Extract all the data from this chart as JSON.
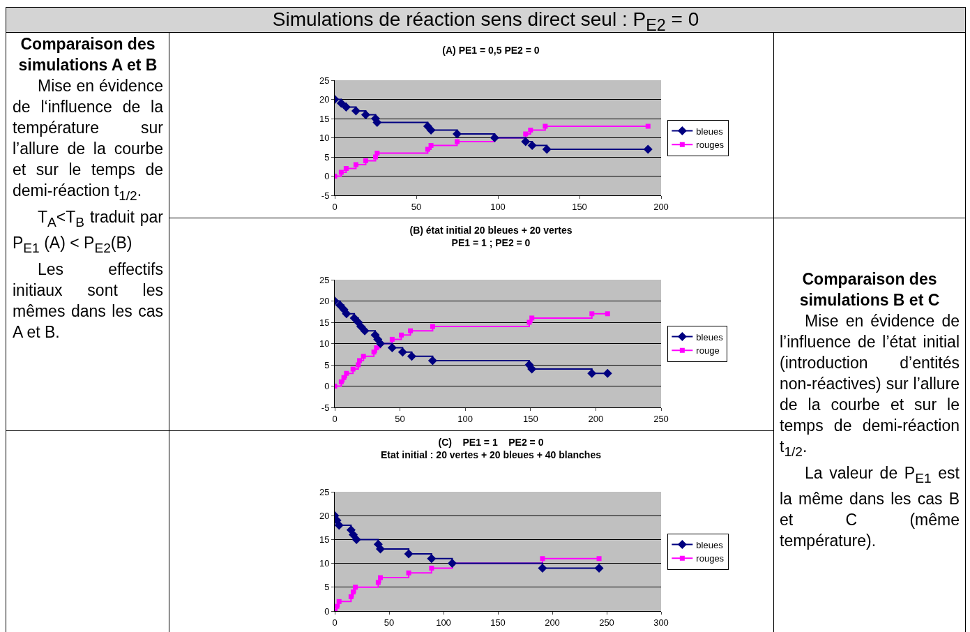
{
  "chart_data": [
    {
      "type": "other",
      "title": "Simulations de réaction sens direct seul : P$_{E2}$ = 0"
    },
    {
      "type": "other",
      "title": "Comparaison des simulations A et B",
      "annotations": [
        "Mise en évidence de l‘influence de la température sur l’allure de la courbe et sur le temps de demi-réaction t$_{1/2}$.",
        "T$_{A}$<T$_{B}$ traduit par P$_{E1}$ (A) < P$_{E2}$(B)",
        "Les effectifs initiaux sont les mêmes dans les cas A et B."
      ]
    },
    {
      "type": "step",
      "title": "(A) PE1 = 0,5 PE2 = 0",
      "xlim": [
        0,
        200
      ],
      "xticks": [
        0,
        50,
        100,
        150,
        200
      ],
      "ylim": [
        -5,
        25
      ],
      "yticks": [
        -5,
        0,
        5,
        10,
        15,
        20,
        25
      ],
      "grid": "y",
      "legend": "right",
      "series": [
        {
          "name": "bleues",
          "color": "#000080",
          "marker": "diamond",
          "x": [
            0,
            4,
            7,
            13,
            19,
            25,
            26,
            57,
            59,
            75,
            98,
            117,
            121,
            130,
            192
          ],
          "values": [
            20,
            19,
            18,
            17,
            16,
            15,
            14,
            13,
            12,
            11,
            10,
            9,
            8,
            7,
            7
          ]
        },
        {
          "name": "rouges",
          "color": "#ff00ff",
          "marker": "square",
          "x": [
            0,
            4,
            7,
            13,
            19,
            25,
            26,
            57,
            59,
            75,
            98,
            117,
            120,
            129,
            192
          ],
          "values": [
            0,
            1,
            2,
            3,
            4,
            5,
            6,
            7,
            8,
            9,
            10,
            11,
            12,
            13,
            13
          ]
        }
      ]
    },
    {
      "type": "step",
      "title": "(B) état initial 20 bleues + 20 vertes\nPE1 = 1 ; PE2 = 0",
      "xlim": [
        0,
        250
      ],
      "xticks": [
        0,
        50,
        100,
        150,
        200,
        250
      ],
      "ylim": [
        -5,
        25
      ],
      "yticks": [
        -5,
        0,
        5,
        10,
        15,
        20,
        25
      ],
      "grid": "y",
      "legend": "right",
      "series": [
        {
          "name": "bleues",
          "color": "#000080",
          "marker": "diamond",
          "x": [
            0,
            4,
            7,
            9,
            15,
            18,
            20,
            23,
            31,
            33,
            35,
            44,
            52,
            59,
            75,
            149,
            151,
            197,
            209
          ],
          "values": [
            20,
            19,
            18,
            17,
            16,
            15,
            14,
            13,
            12,
            11,
            10,
            9,
            8,
            7,
            6,
            5,
            4,
            3,
            3
          ]
        },
        {
          "name": "rouge",
          "color": "#ff00ff",
          "marker": "square",
          "x": [
            0,
            5,
            7,
            9,
            14,
            18,
            19,
            22,
            30,
            32,
            35,
            44,
            51,
            58,
            75,
            149,
            151,
            197,
            209
          ],
          "values": [
            0,
            1,
            2,
            3,
            4,
            5,
            6,
            7,
            8,
            9,
            10,
            11,
            12,
            13,
            14,
            15,
            16,
            17,
            17
          ]
        }
      ]
    },
    {
      "type": "other",
      "title": "Comparaison des simulations B et C",
      "annotations": [
        "Mise en évidence de l’influence de l’état initial (introduction d’entités non-réactives) sur l’allure de la courbe et sur le temps de demi-réaction t$_{1/2}$.",
        "La valeur de P$_{E1}$ est la même dans les cas B et C (même température)."
      ]
    },
    {
      "type": "step",
      "title": "(C)    PE1 = 1    PE2 = 0\nEtat initial : 20 vertes + 20 bleues + 40 blanches",
      "xlim": [
        0,
        300
      ],
      "xticks": [
        0,
        50,
        100,
        150,
        200,
        250,
        300
      ],
      "ylim": [
        0,
        25
      ],
      "yticks": [
        0,
        5,
        10,
        15,
        20,
        25
      ],
      "grid": "y",
      "legend": "right",
      "series": [
        {
          "name": "bleues",
          "color": "#000080",
          "marker": "diamond",
          "x": [
            0,
            2,
            4,
            15,
            17,
            20,
            40,
            42,
            68,
            89,
            108,
            191,
            243
          ],
          "values": [
            20,
            19,
            18,
            17,
            16,
            15,
            14,
            13,
            12,
            11,
            10,
            9,
            9
          ]
        },
        {
          "name": "rouges",
          "color": "#ff00ff",
          "marker": "square",
          "x": [
            0,
            2,
            4,
            15,
            17,
            19,
            40,
            42,
            68,
            89,
            108,
            191,
            243
          ],
          "values": [
            0,
            1,
            2,
            3,
            4,
            5,
            6,
            7,
            8,
            9,
            10,
            11,
            11
          ]
        }
      ]
    }
  ]
}
